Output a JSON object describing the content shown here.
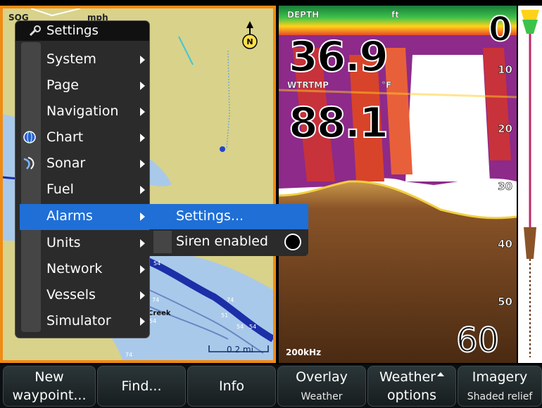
{
  "chart": {
    "sog_label": "SOG",
    "speed_unit": "mph",
    "north_label": "N",
    "scale_label": "0.2 mi",
    "creek_label": "Creek",
    "depth_soundings": [
      "54",
      "74",
      "51",
      "54",
      "54",
      "74",
      "74",
      "54"
    ]
  },
  "sonar": {
    "depth_label": "DEPTH",
    "depth_unit": "ft",
    "depth_value": "36.9",
    "temp_label": "WTRTMP",
    "temp_unit": "°F",
    "temp_value": "88.1",
    "range_top": "0",
    "range_bottom": "60",
    "depth_scale": [
      "10",
      "20",
      "30",
      "40",
      "50"
    ],
    "frequency": "200kHz"
  },
  "menu": {
    "title": "Settings",
    "items": [
      {
        "label": "System"
      },
      {
        "label": "Page"
      },
      {
        "label": "Navigation"
      },
      {
        "label": "Chart",
        "icon": "globe-icon"
      },
      {
        "label": "Sonar",
        "icon": "sonar-icon"
      },
      {
        "label": "Fuel"
      },
      {
        "label": "Alarms",
        "selected": true
      },
      {
        "label": "Units"
      },
      {
        "label": "Network"
      },
      {
        "label": "Vessels"
      },
      {
        "label": "Simulator"
      }
    ]
  },
  "submenu": {
    "items": [
      {
        "label": "Settings...",
        "selected": true
      },
      {
        "label": "Siren enabled",
        "toggle": "off"
      }
    ]
  },
  "softkeys": {
    "new_waypoint": {
      "line1": "New",
      "line2": "waypoint..."
    },
    "find": "Find...",
    "info": "Info",
    "overlay": {
      "label": "Overlay",
      "value": "Weather"
    },
    "weather_options": {
      "line1": "Weather",
      "line2": "options"
    },
    "imagery": {
      "label": "Imagery",
      "value": "Shaded relief"
    }
  },
  "colors": {
    "accent": "#1f6fd6",
    "chart_border": "#f08a12",
    "land": "#d9d28a",
    "water": "#a9c9ea"
  }
}
